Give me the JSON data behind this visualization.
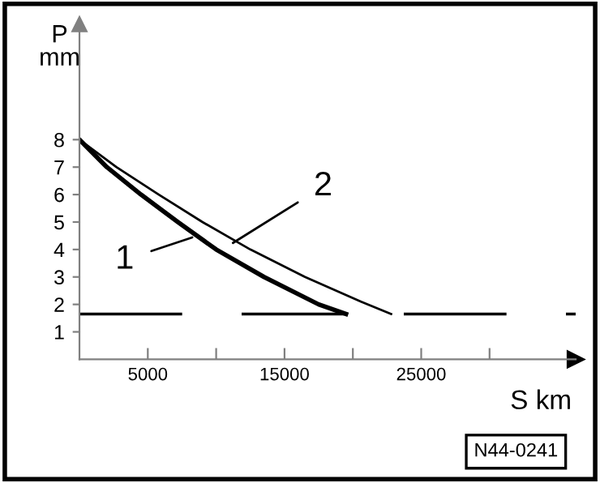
{
  "chart_data": {
    "type": "line",
    "xlabel": "S km",
    "ylabel": "P\nmm",
    "series": [
      {
        "color": "#000000",
        "x": [
          0,
          2000,
          4500,
          7200,
          10000,
          13500,
          17500,
          19500
        ],
        "values": [
          8,
          7,
          6,
          5,
          4,
          3,
          2,
          1.65
        ]
      },
      {
        "color": "#000000",
        "x": [
          0,
          2700,
          5800,
          9000,
          12500,
          16500,
          20600,
          22800
        ],
        "values": [
          8,
          7,
          6,
          5,
          4,
          3,
          2.1,
          1.65
        ]
      }
    ],
    "xlim": [
      0,
      36300
    ],
    "ylim": [
      0,
      12.2
    ],
    "xticks": [
      5000,
      {
        "value": 10000,
        "label": null
      },
      15000,
      {
        "value": 20000,
        "label": null
      },
      25000,
      {
        "value": 30000,
        "label": null
      }
    ],
    "yticks": [
      1,
      2,
      3,
      4,
      5,
      6,
      7,
      8
    ],
    "ref_lines": [
      {
        "axis": "y",
        "value": 1.65,
        "line_style": "dashed",
        "color": "#000000"
      }
    ],
    "annotations": [
      {
        "text": "1",
        "x": 8250,
        "y": 4.44
      },
      {
        "text": "2",
        "x": 11230,
        "y": 4.24
      },
      "N44-0241"
    ],
    "grid": false,
    "legend": false,
    "marker": "none",
    "line_style": "solid"
  }
}
